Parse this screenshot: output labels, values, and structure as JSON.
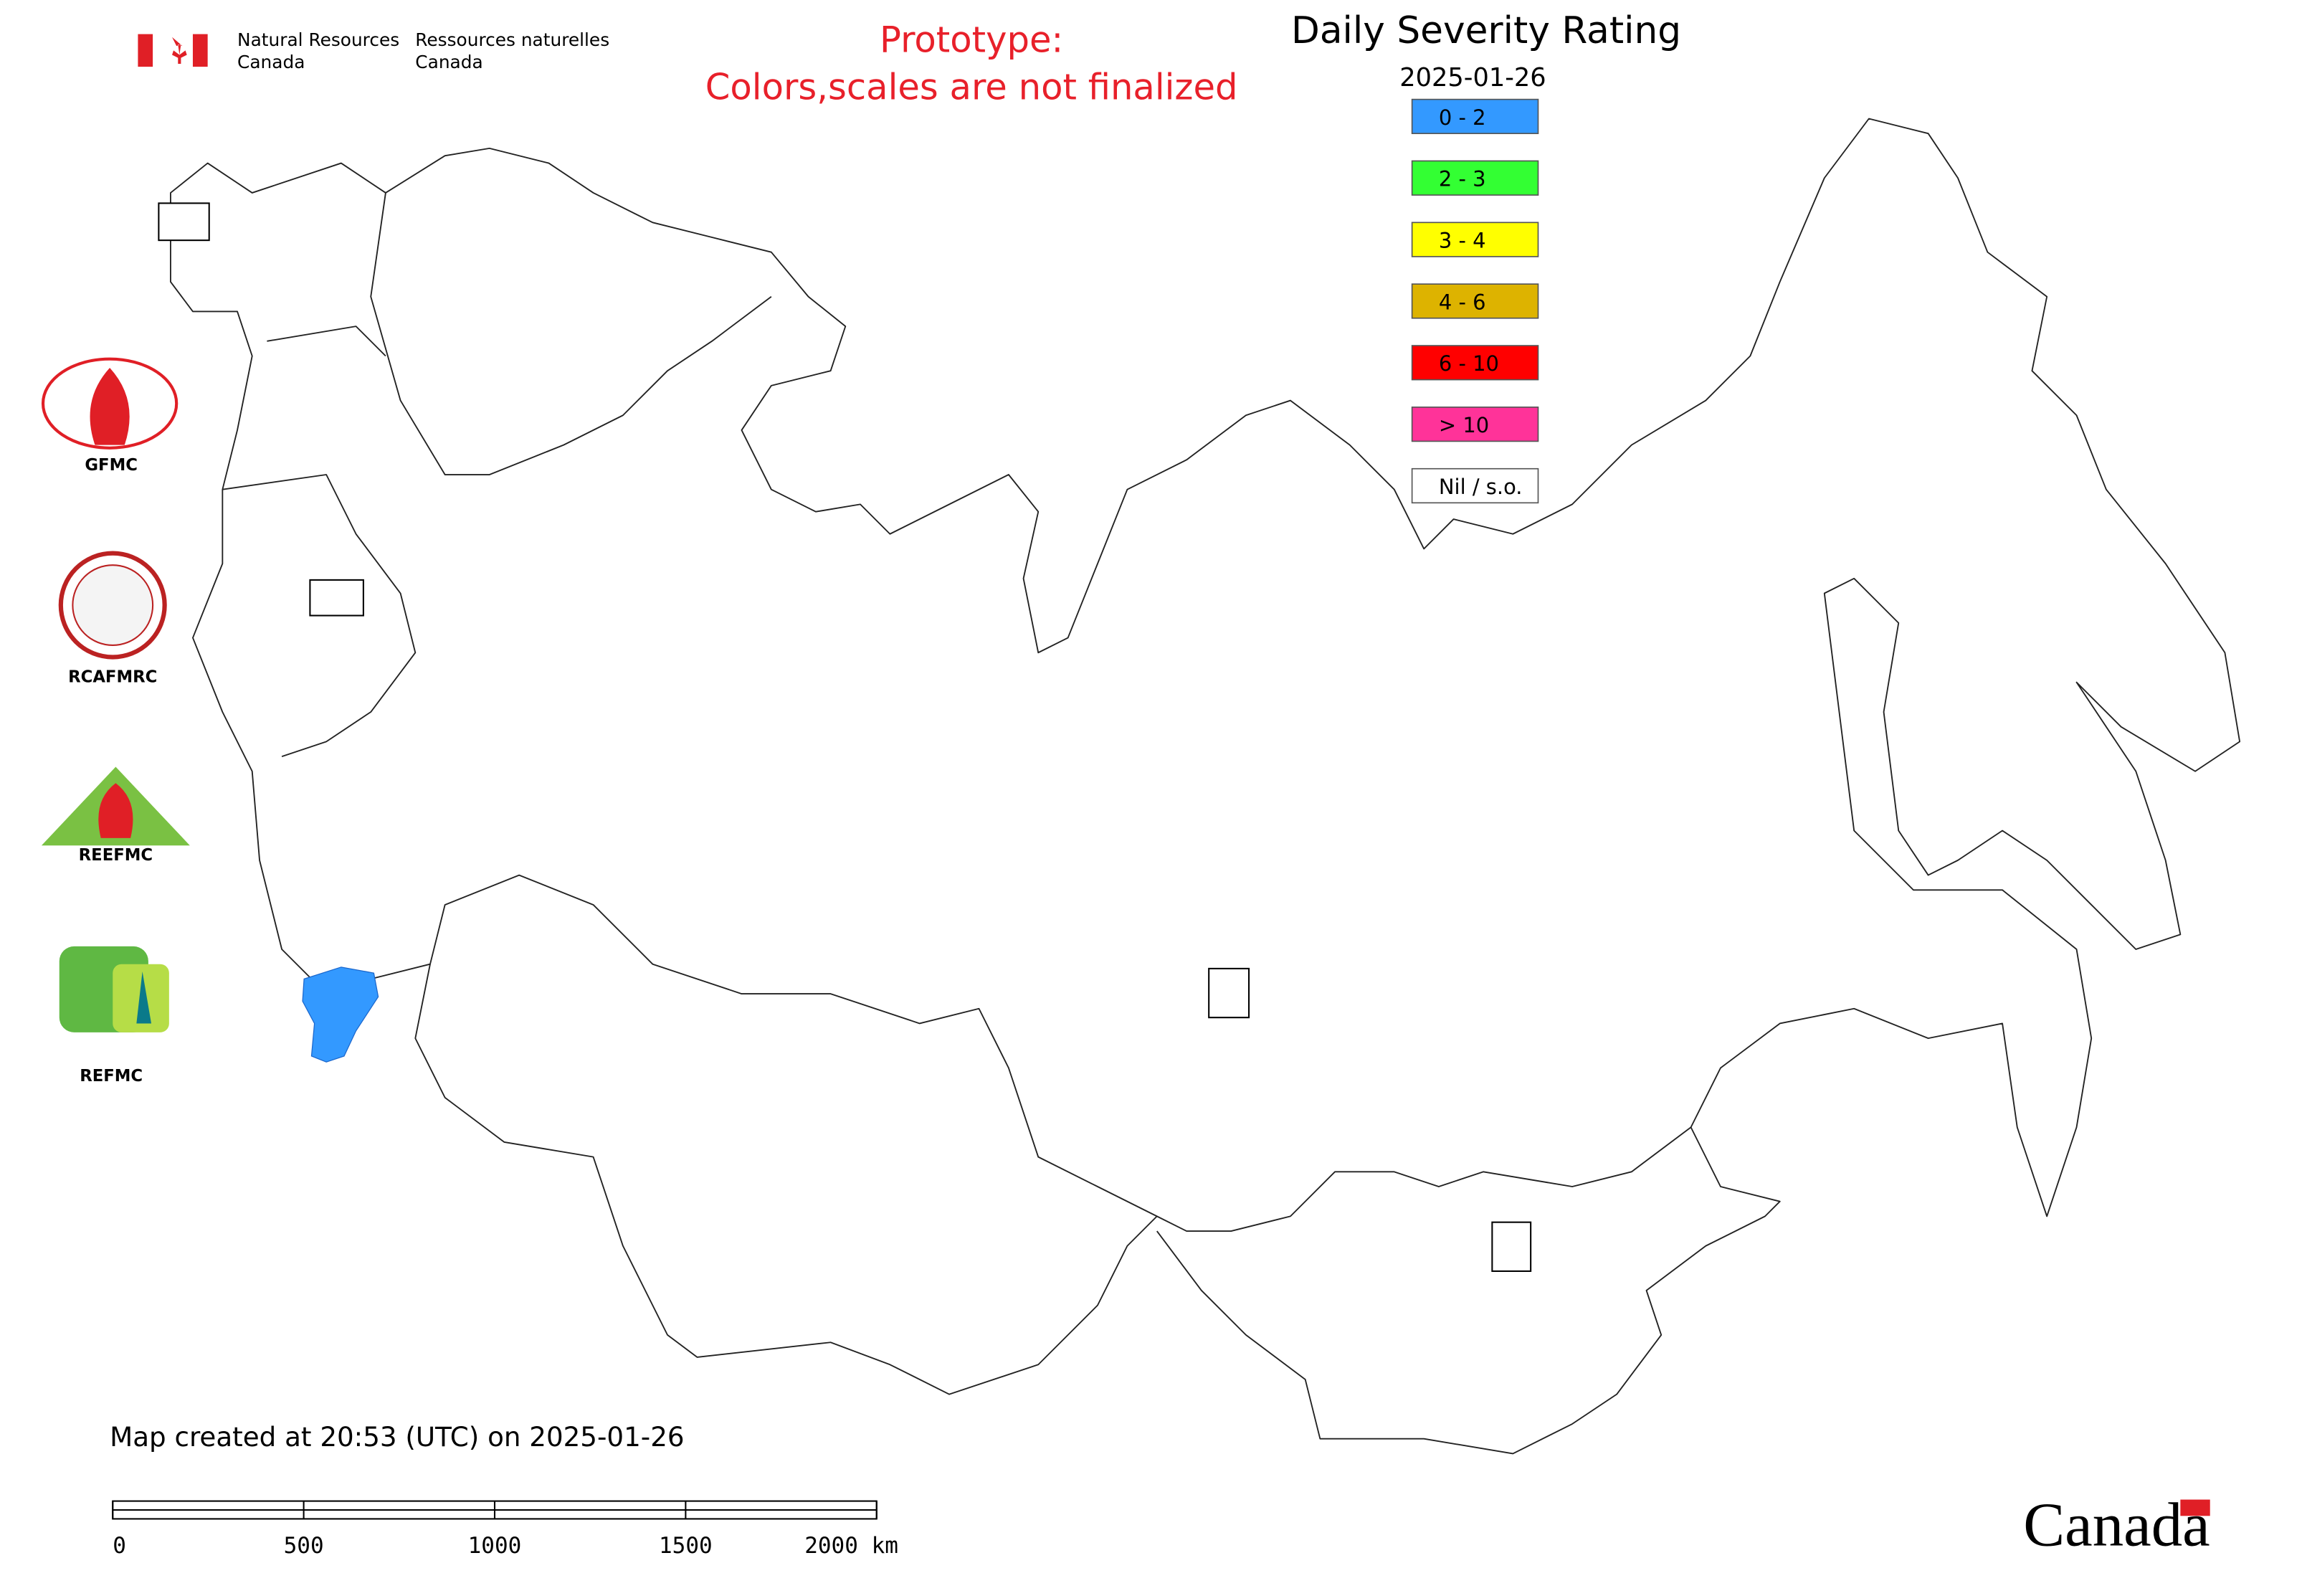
{
  "header": {
    "agency_en": [
      "Natural Resources",
      "Canada"
    ],
    "agency_fr": [
      "Ressources naturelles",
      "Canada"
    ],
    "notice": [
      "Prototype:",
      "Colors,scales are not finalized"
    ]
  },
  "legend": {
    "title": "Daily Severity Rating",
    "date": "2025-01-26",
    "items": [
      {
        "label": "0 - 2",
        "color": "#3399ff"
      },
      {
        "label": "2 - 3",
        "color": "#33ff33"
      },
      {
        "label": "3 - 4",
        "color": "#ffff00"
      },
      {
        "label": "4 - 6",
        "color": "#ddb300"
      },
      {
        "label": "6 - 10",
        "color": "#ff0000"
      },
      {
        "label": "> 10",
        "color": "#ff3399"
      },
      {
        "label": "Nil / s.o.",
        "color": "#ffffff"
      }
    ]
  },
  "logos": [
    "GFMC",
    "RCAFMRC",
    "REEFMC",
    "REFMC"
  ],
  "footer": {
    "created": "Map created at 20:53 (UTC) on 2025-01-26",
    "scale_labels": [
      "0",
      "500",
      "1000",
      "1500",
      "2000 km"
    ],
    "wordmark": "Canada"
  }
}
